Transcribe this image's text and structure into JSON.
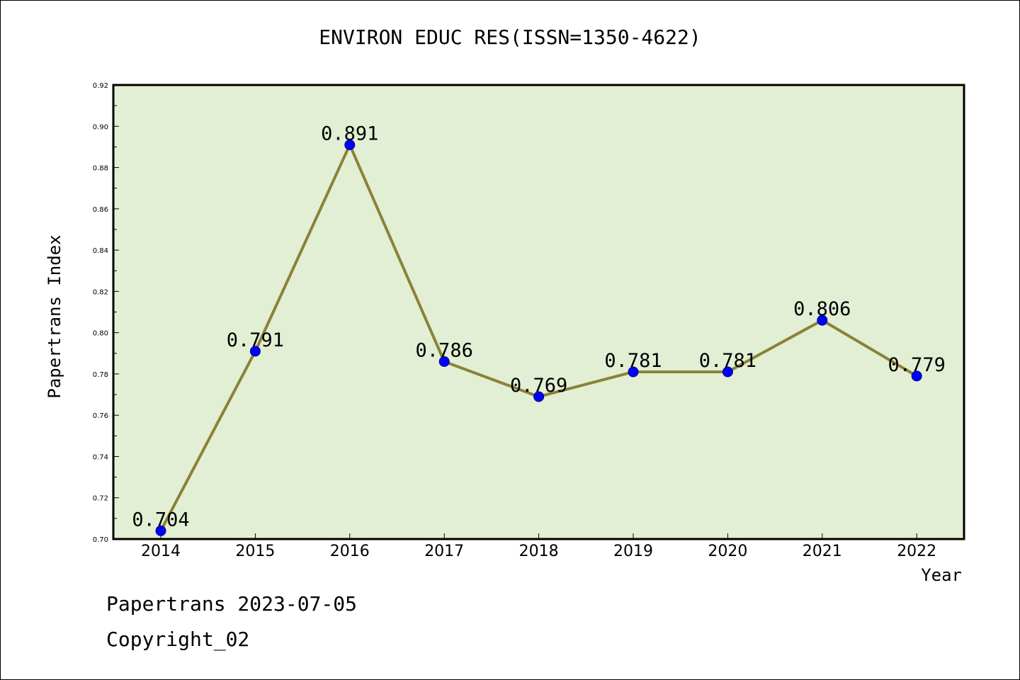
{
  "chart_data": {
    "type": "line",
    "title": "ENVIRON EDUC RES(ISSN=1350-4622)",
    "xlabel": "Year",
    "ylabel": "Papertrans Index",
    "categories": [
      "2014",
      "2015",
      "2016",
      "2017",
      "2018",
      "2019",
      "2020",
      "2021",
      "2022"
    ],
    "values": [
      0.704,
      0.791,
      0.891,
      0.786,
      0.769,
      0.781,
      0.781,
      0.806,
      0.779
    ],
    "data_labels": [
      "0.704",
      "0.791",
      "0.891",
      "0.786",
      "0.769",
      "0.781",
      "0.781",
      "0.806",
      "0.779"
    ],
    "ylim": [
      0.7,
      0.92
    ],
    "yticks": [
      "0.70",
      "0.72",
      "0.74",
      "0.76",
      "0.78",
      "0.80",
      "0.82",
      "0.84",
      "0.86",
      "0.88",
      "0.90",
      "0.92"
    ],
    "grid": false,
    "legend": "none",
    "colors": {
      "plot_bg": "#e2efd4",
      "line": "#8b8238",
      "marker": "#0000ff",
      "marker_edge": "#000080"
    }
  },
  "footer": {
    "line1": "Papertrans 2023-07-05",
    "line2": "Copyright_02"
  }
}
